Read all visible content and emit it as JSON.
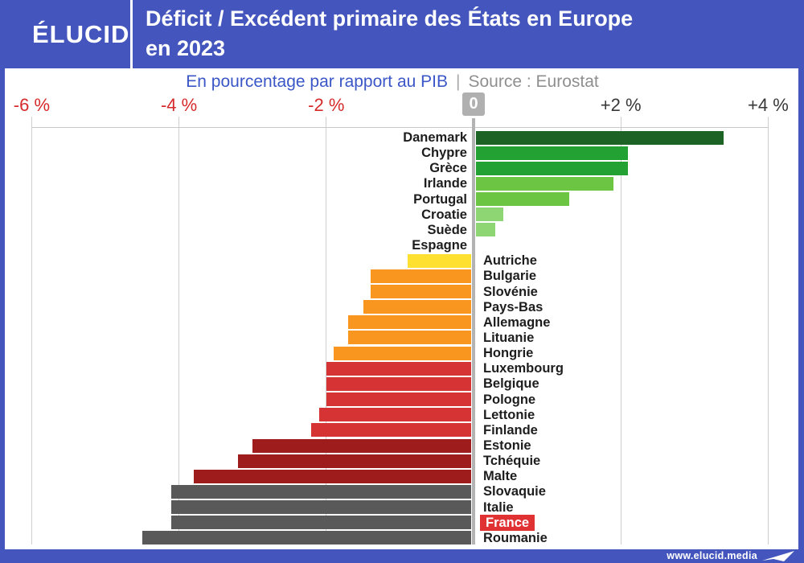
{
  "header": {
    "logo": "ÉLUCID",
    "title_line1": "Déficit / Excédent primaire des États en Europe",
    "title_line2": "en 2023"
  },
  "subtitle": {
    "text": "En pourcentage par rapport au PIB",
    "separator": "|",
    "source": "Source : Eurostat"
  },
  "axis": {
    "ticks": [
      {
        "label": "-6 %",
        "value": -6,
        "color": "#d62a2a"
      },
      {
        "label": "-4 %",
        "value": -4,
        "color": "#d62a2a"
      },
      {
        "label": "-2 %",
        "value": -2,
        "color": "#d62a2a"
      },
      {
        "label": "0",
        "value": 0,
        "color": "badge"
      },
      {
        "label": "+2 %",
        "value": 2,
        "color": "#383838"
      },
      {
        "label": "+4 %",
        "value": 4,
        "color": "#383838"
      }
    ]
  },
  "chart_data": {
    "type": "bar",
    "orientation": "horizontal",
    "title": "Déficit / Excédent primaire des États en Europe en 2023",
    "xlabel": "En pourcentage par rapport au PIB",
    "source": "Eurostat",
    "unit": "% du PIB",
    "xlim": [
      -6,
      4
    ],
    "gridlines": [
      -6,
      -4,
      -2,
      2,
      4
    ],
    "grid": true,
    "highlight": "France",
    "series": [
      {
        "label": "Danemark",
        "value": 3.4,
        "color": "#1e6326"
      },
      {
        "label": "Chypre",
        "value": 2.1,
        "color": "#23a233"
      },
      {
        "label": "Grèce",
        "value": 2.1,
        "color": "#23a233"
      },
      {
        "label": "Irlande",
        "value": 1.9,
        "color": "#6cc644"
      },
      {
        "label": "Portugal",
        "value": 1.3,
        "color": "#6cc644"
      },
      {
        "label": "Croatie",
        "value": 0.4,
        "color": "#8ed573"
      },
      {
        "label": "Suède",
        "value": 0.3,
        "color": "#8ed573"
      },
      {
        "label": "Espagne",
        "value": 0.0,
        "color": "#8ed573"
      },
      {
        "label": "Autriche",
        "value": -0.9,
        "color": "#fee030"
      },
      {
        "label": "Bulgarie",
        "value": -1.4,
        "color": "#f89620"
      },
      {
        "label": "Slovénie",
        "value": -1.4,
        "color": "#f89620"
      },
      {
        "label": "Pays-Bas",
        "value": -1.5,
        "color": "#f89620"
      },
      {
        "label": "Allemagne",
        "value": -1.7,
        "color": "#f89620"
      },
      {
        "label": "Lituanie",
        "value": -1.7,
        "color": "#f89620"
      },
      {
        "label": "Hongrie",
        "value": -1.9,
        "color": "#f89620"
      },
      {
        "label": "Luxembourg",
        "value": -2.0,
        "color": "#d63434"
      },
      {
        "label": "Belgique",
        "value": -2.0,
        "color": "#d63434"
      },
      {
        "label": "Pologne",
        "value": -2.0,
        "color": "#d63434"
      },
      {
        "label": "Lettonie",
        "value": -2.1,
        "color": "#d63434"
      },
      {
        "label": "Finlande",
        "value": -2.2,
        "color": "#d63434"
      },
      {
        "label": "Estonie",
        "value": -3.0,
        "color": "#9e1c1c"
      },
      {
        "label": "Tchéquie",
        "value": -3.2,
        "color": "#9e1c1c"
      },
      {
        "label": "Malte",
        "value": -3.8,
        "color": "#9e1c1c"
      },
      {
        "label": "Slovaquie",
        "value": -4.1,
        "color": "#595959"
      },
      {
        "label": "Italie",
        "value": -4.1,
        "color": "#595959"
      },
      {
        "label": "France",
        "value": -4.1,
        "color": "#595959"
      },
      {
        "label": "Roumanie",
        "value": -4.5,
        "color": "#595959"
      }
    ]
  },
  "footer": {
    "url": "www.elucid.media"
  },
  "palette": {
    "frame_blue": "#4456bd",
    "subtitle_blue": "#3b57c7",
    "source_gray": "#8f8f8f",
    "axis_negative_red": "#d62a2a",
    "axis_positive_dark": "#383838",
    "zero_badge_gray": "#b0b0b0",
    "grid_gray": "#cfcfcf",
    "zero_line_gray": "#b3b3b3",
    "label_dark": "#1d1d1d",
    "france_highlight_red": "#e03133"
  }
}
